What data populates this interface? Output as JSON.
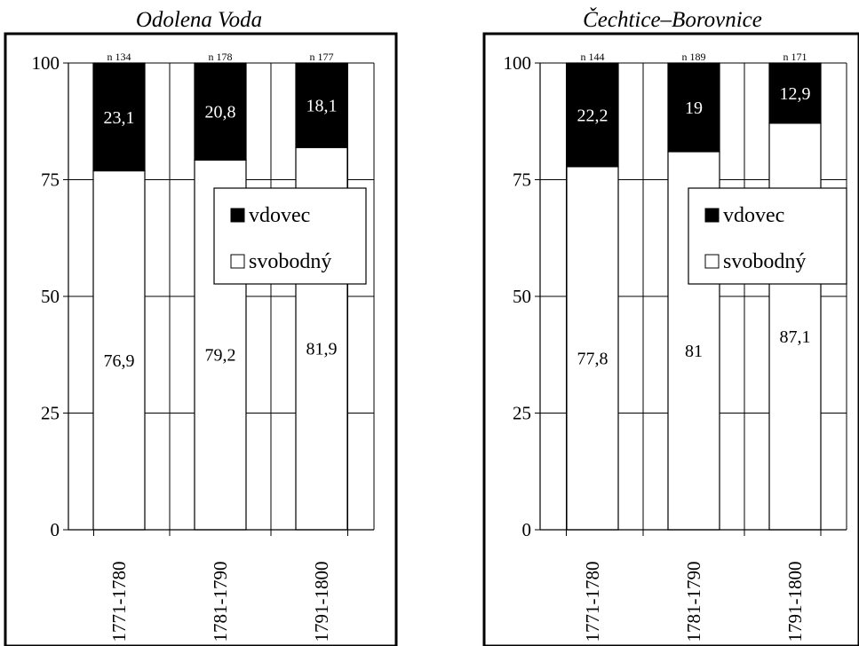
{
  "chart_data": [
    {
      "type": "bar",
      "stacked": true,
      "title": "Odolena Voda",
      "categories": [
        "1771-1780",
        "1781-1790",
        "1791-1800"
      ],
      "n_labels": [
        "n 134",
        "n 178",
        "n 177"
      ],
      "series": [
        {
          "name": "svobodný",
          "values": [
            76.9,
            79.2,
            81.9
          ],
          "labels": [
            "76,9",
            "79,2",
            "81,9"
          ],
          "color": "#ffffff"
        },
        {
          "name": "vdovec",
          "values": [
            23.1,
            20.8,
            18.1
          ],
          "labels": [
            "23,1",
            "20,8",
            "18,1"
          ],
          "color": "#000000"
        }
      ],
      "ylim": [
        0,
        100
      ],
      "yticks": [
        "0",
        "25",
        "50",
        "75",
        "100"
      ],
      "grid": true,
      "legend": "right, middle"
    },
    {
      "type": "bar",
      "stacked": true,
      "title": "Čechtice–Borovnice",
      "categories": [
        "1771-1780",
        "1781-1790",
        "1791-1800"
      ],
      "n_labels": [
        "n 144",
        "n 189",
        "n 171"
      ],
      "series": [
        {
          "name": "svobodný",
          "values": [
            77.8,
            81,
            87.1
          ],
          "labels": [
            "77,8",
            "81",
            "87,1"
          ],
          "color": "#ffffff"
        },
        {
          "name": "vdovec",
          "values": [
            22.2,
            19,
            12.9
          ],
          "labels": [
            "22,2",
            "19",
            "12,9"
          ],
          "color": "#000000"
        }
      ],
      "ylim": [
        0,
        100
      ],
      "yticks": [
        "0",
        "25",
        "50",
        "75",
        "100"
      ],
      "grid": true,
      "legend": "right, middle"
    }
  ]
}
